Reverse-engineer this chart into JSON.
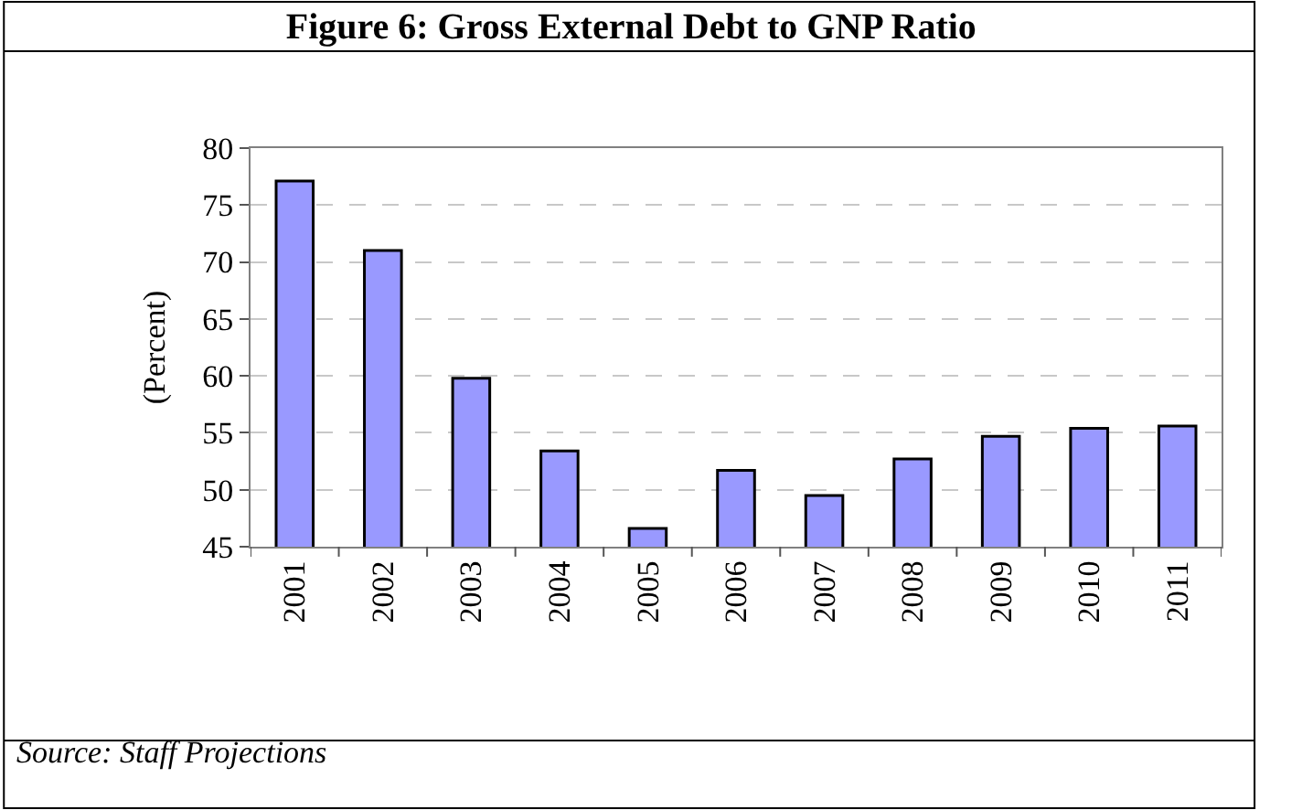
{
  "chart_data": {
    "type": "bar",
    "title": "Figure 6: Gross External Debt to GNP Ratio",
    "ylabel": "(Percent)",
    "categories": [
      "2001",
      "2002",
      "2003",
      "2004",
      "2005",
      "2006",
      "2007",
      "2008",
      "2009",
      "2010",
      "2011"
    ],
    "values": [
      77.1,
      71.0,
      59.8,
      53.4,
      46.6,
      51.7,
      49.5,
      52.7,
      54.7,
      55.4,
      55.6
    ],
    "color": "#9999ff",
    "ylim": [
      45,
      80
    ],
    "yticks": [
      45,
      50,
      55,
      60,
      65,
      70,
      75,
      80
    ],
    "grid": "y",
    "annotations": [
      "Source: Staff Projections"
    ]
  }
}
